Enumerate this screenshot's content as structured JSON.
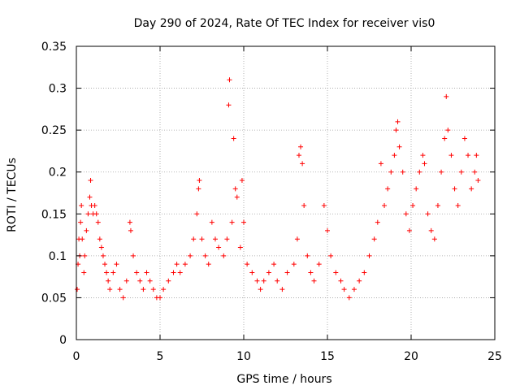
{
  "chart_data": {
    "type": "scatter",
    "title": "Day 290 of 2024, Rate Of TEC Index for receiver vis0",
    "xlabel": "GPS time / hours",
    "ylabel": "ROTI / TECUs",
    "xlim": [
      0,
      25
    ],
    "ylim": [
      0,
      0.35
    ],
    "x_ticks": [
      0,
      5,
      10,
      15,
      20,
      25
    ],
    "y_ticks": [
      0,
      0.05,
      0.1,
      0.15,
      0.2,
      0.25,
      0.3,
      0.35
    ],
    "x_tick_labels": [
      "0",
      "5",
      "10",
      "15",
      "20",
      "25"
    ],
    "y_tick_labels": [
      "0",
      "0.05",
      "0.1",
      "0.15",
      "0.2",
      "0.25",
      "0.3",
      "0.35"
    ],
    "grid": true,
    "marker": "+",
    "color": "#ff0000",
    "series": [
      {
        "points": [
          [
            0.05,
            0.06
          ],
          [
            0.1,
            0.09
          ],
          [
            0.15,
            0.12
          ],
          [
            0.2,
            0.1
          ],
          [
            0.25,
            0.14
          ],
          [
            0.3,
            0.16
          ],
          [
            0.35,
            0.12
          ],
          [
            0.45,
            0.08
          ],
          [
            0.5,
            0.1
          ],
          [
            0.6,
            0.13
          ],
          [
            0.7,
            0.15
          ],
          [
            0.8,
            0.17
          ],
          [
            0.85,
            0.19
          ],
          [
            0.9,
            0.16
          ],
          [
            1.0,
            0.15
          ],
          [
            1.1,
            0.16
          ],
          [
            1.2,
            0.15
          ],
          [
            1.3,
            0.14
          ],
          [
            1.4,
            0.12
          ],
          [
            1.5,
            0.11
          ],
          [
            1.6,
            0.1
          ],
          [
            1.7,
            0.09
          ],
          [
            1.8,
            0.08
          ],
          [
            1.9,
            0.07
          ],
          [
            2.0,
            0.06
          ],
          [
            2.2,
            0.08
          ],
          [
            2.4,
            0.09
          ],
          [
            2.6,
            0.06
          ],
          [
            2.8,
            0.05
          ],
          [
            3.0,
            0.07
          ],
          [
            3.2,
            0.14
          ],
          [
            3.25,
            0.13
          ],
          [
            3.4,
            0.1
          ],
          [
            3.6,
            0.08
          ],
          [
            3.8,
            0.07
          ],
          [
            4.0,
            0.06
          ],
          [
            4.2,
            0.08
          ],
          [
            4.4,
            0.07
          ],
          [
            4.6,
            0.06
          ],
          [
            4.8,
            0.05
          ],
          [
            5.0,
            0.05
          ],
          [
            5.2,
            0.06
          ],
          [
            5.5,
            0.07
          ],
          [
            5.8,
            0.08
          ],
          [
            6.0,
            0.09
          ],
          [
            6.2,
            0.08
          ],
          [
            6.5,
            0.09
          ],
          [
            6.8,
            0.1
          ],
          [
            7.0,
            0.12
          ],
          [
            7.2,
            0.15
          ],
          [
            7.3,
            0.18
          ],
          [
            7.35,
            0.19
          ],
          [
            7.5,
            0.12
          ],
          [
            7.7,
            0.1
          ],
          [
            7.9,
            0.09
          ],
          [
            8.1,
            0.14
          ],
          [
            8.3,
            0.12
          ],
          [
            8.5,
            0.11
          ],
          [
            8.8,
            0.1
          ],
          [
            9.0,
            0.12
          ],
          [
            9.1,
            0.28
          ],
          [
            9.15,
            0.31
          ],
          [
            9.3,
            0.14
          ],
          [
            9.4,
            0.24
          ],
          [
            9.5,
            0.18
          ],
          [
            9.6,
            0.17
          ],
          [
            9.8,
            0.11
          ],
          [
            9.9,
            0.19
          ],
          [
            10.0,
            0.14
          ],
          [
            10.2,
            0.09
          ],
          [
            10.5,
            0.08
          ],
          [
            10.8,
            0.07
          ],
          [
            11.0,
            0.06
          ],
          [
            11.2,
            0.07
          ],
          [
            11.5,
            0.08
          ],
          [
            11.8,
            0.09
          ],
          [
            12.0,
            0.07
          ],
          [
            12.3,
            0.06
          ],
          [
            12.6,
            0.08
          ],
          [
            13.0,
            0.09
          ],
          [
            13.2,
            0.12
          ],
          [
            13.3,
            0.22
          ],
          [
            13.4,
            0.23
          ],
          [
            13.5,
            0.21
          ],
          [
            13.6,
            0.16
          ],
          [
            13.8,
            0.1
          ],
          [
            14.0,
            0.08
          ],
          [
            14.2,
            0.07
          ],
          [
            14.5,
            0.09
          ],
          [
            14.8,
            0.16
          ],
          [
            15.0,
            0.13
          ],
          [
            15.2,
            0.1
          ],
          [
            15.5,
            0.08
          ],
          [
            15.8,
            0.07
          ],
          [
            16.0,
            0.06
          ],
          [
            16.3,
            0.05
          ],
          [
            16.6,
            0.06
          ],
          [
            16.9,
            0.07
          ],
          [
            17.2,
            0.08
          ],
          [
            17.5,
            0.1
          ],
          [
            17.8,
            0.12
          ],
          [
            18.0,
            0.14
          ],
          [
            18.2,
            0.21
          ],
          [
            18.4,
            0.16
          ],
          [
            18.6,
            0.18
          ],
          [
            18.8,
            0.2
          ],
          [
            19.0,
            0.22
          ],
          [
            19.1,
            0.25
          ],
          [
            19.2,
            0.26
          ],
          [
            19.3,
            0.23
          ],
          [
            19.5,
            0.2
          ],
          [
            19.7,
            0.15
          ],
          [
            19.9,
            0.13
          ],
          [
            20.1,
            0.16
          ],
          [
            20.3,
            0.18
          ],
          [
            20.5,
            0.2
          ],
          [
            20.7,
            0.22
          ],
          [
            20.8,
            0.21
          ],
          [
            21.0,
            0.15
          ],
          [
            21.2,
            0.13
          ],
          [
            21.4,
            0.12
          ],
          [
            21.6,
            0.16
          ],
          [
            21.8,
            0.2
          ],
          [
            22.0,
            0.24
          ],
          [
            22.1,
            0.29
          ],
          [
            22.2,
            0.25
          ],
          [
            22.4,
            0.22
          ],
          [
            22.6,
            0.18
          ],
          [
            22.8,
            0.16
          ],
          [
            23.0,
            0.2
          ],
          [
            23.2,
            0.24
          ],
          [
            23.4,
            0.22
          ],
          [
            23.6,
            0.18
          ],
          [
            23.8,
            0.2
          ],
          [
            23.9,
            0.22
          ],
          [
            24.0,
            0.19
          ]
        ]
      }
    ]
  }
}
